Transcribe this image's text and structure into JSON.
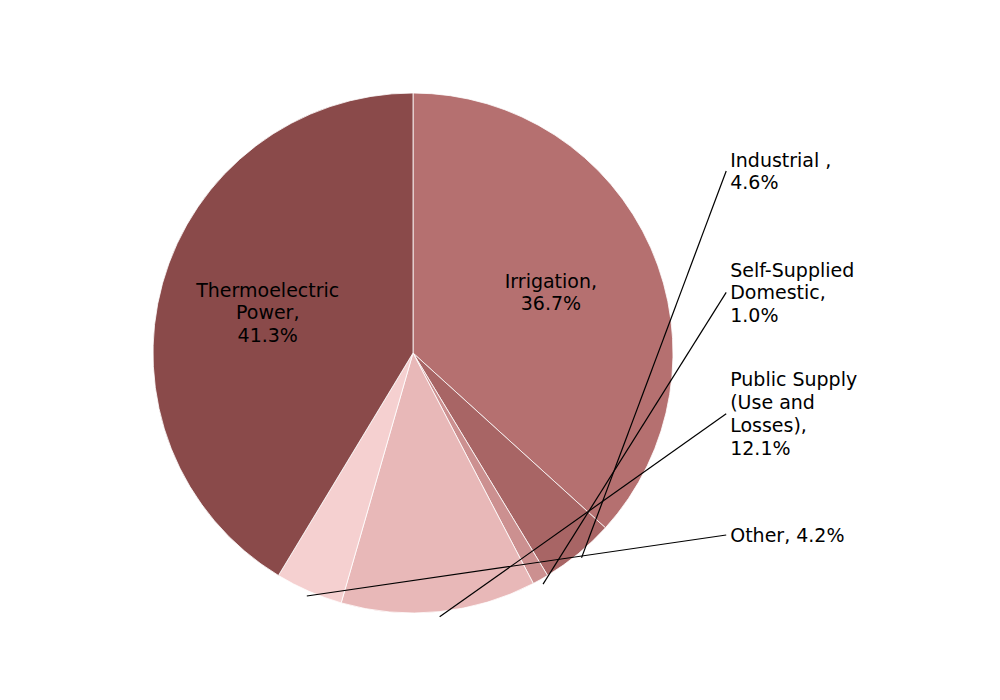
{
  "chart_data": {
    "type": "pie",
    "values": [
      36.7,
      4.6,
      1.0,
      12.1,
      4.2,
      41.3
    ],
    "value_labels": [
      "Irrigation,\n36.7%",
      "Industrial ,\n4.6%",
      "Self-Supplied\nDomestic,\n1.0%",
      "Public Supply\n(Use and\nLosses),\n12.1%",
      "Other, 4.2%",
      "Thermoelectric\nPower,\n41.3%"
    ],
    "colors": [
      "#b57070",
      "#a86565",
      "#cc9090",
      "#e8b8b8",
      "#f5d0d0",
      "#8a4a4a"
    ],
    "data_labels": true
  }
}
